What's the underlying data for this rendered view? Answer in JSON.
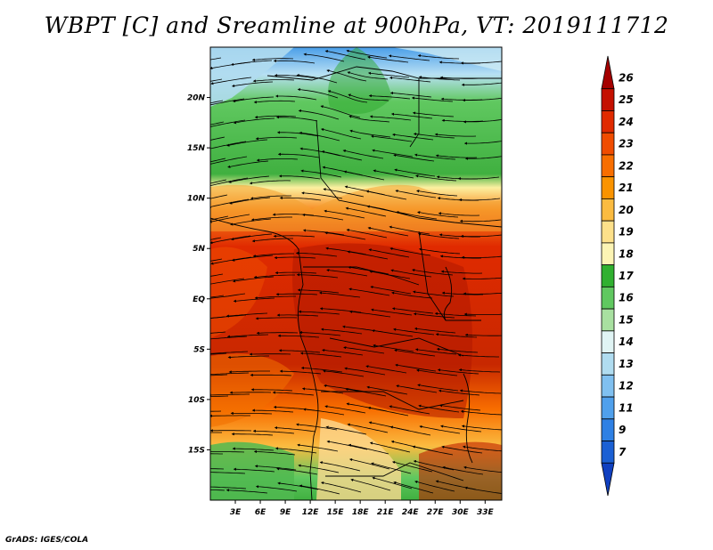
{
  "title": "WBPT [C] and Sreamline at 900hPa, VT: 2019111712",
  "credit": "GrADS: IGES/COLA",
  "map": {
    "variable": "WBPT",
    "units": "C",
    "level": "900hPa",
    "valid_time": "2019111712",
    "lat_ticks": [
      "20N",
      "15N",
      "10N",
      "5N",
      "EQ",
      "5S",
      "10S",
      "15S"
    ],
    "lon_ticks": [
      "3E",
      "6E",
      "9E",
      "12E",
      "15E",
      "18E",
      "21E",
      "24E",
      "27E",
      "30E",
      "33E"
    ],
    "lon_range": [
      0,
      35
    ],
    "lat_range": [
      -20,
      25
    ]
  },
  "colorbar": {
    "labels": [
      "26",
      "25",
      "24",
      "23",
      "22",
      "21",
      "20",
      "19",
      "18",
      "17",
      "16",
      "15",
      "14",
      "13",
      "12",
      "11",
      "9",
      "7"
    ],
    "colors": [
      "#a50000",
      "#c41000",
      "#e02a00",
      "#f04c00",
      "#f86e00",
      "#fa9300",
      "#fbbb40",
      "#fde08a",
      "#fcf4b4",
      "#30b030",
      "#60c860",
      "#a8e0a0",
      "#e0f4f4",
      "#b0dcf0",
      "#80c0f0",
      "#50a0ec",
      "#2e80e4",
      "#1b60d4",
      "#1040c0"
    ]
  }
}
